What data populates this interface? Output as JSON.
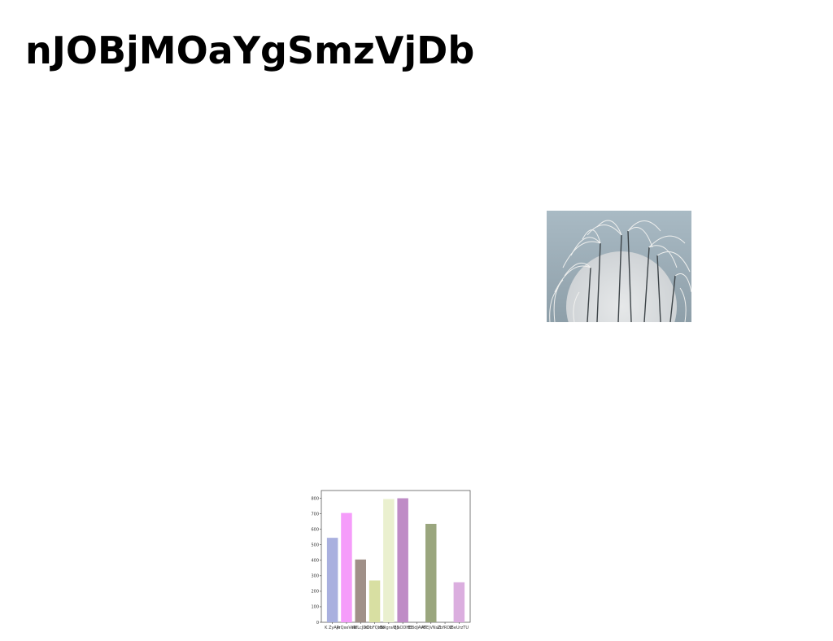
{
  "page": {
    "title": "nJOBjMOaYgSmzVjDb"
  },
  "photo": {
    "subject": "pampas-grass-over-moon",
    "colors": {
      "sky": "#9fb0ba",
      "moon": "#dcdedf",
      "grass": "#f2f2f0",
      "stems": "#3d4448"
    }
  },
  "chart_data": {
    "type": "bar",
    "categories": [
      "K ZyAje",
      "PrQxeVeN",
      "WfLcJDO",
      "kDbFQtBo",
      "zBRgraVjS",
      "BjsODHE",
      "EIBdJAVB",
      "ATEjVNsZ",
      "ZbfRDZ",
      "fBeUrzTU"
    ],
    "values": [
      545,
      705,
      405,
      270,
      795,
      800,
      0,
      635,
      0,
      258
    ],
    "colors": [
      "#a9b0df",
      "#f59cfa",
      "#a09088",
      "#d8dfa2",
      "#eaf0cf",
      "#bf8cc6",
      "#cccccc",
      "#9aa67e",
      "#cccccc",
      "#dbaedf"
    ],
    "yticks": [
      0,
      100,
      200,
      300,
      400,
      500,
      600,
      700,
      800
    ],
    "ylim": [
      0,
      850
    ],
    "title": "",
    "xlabel": "",
    "ylabel": "",
    "grid": false
  }
}
